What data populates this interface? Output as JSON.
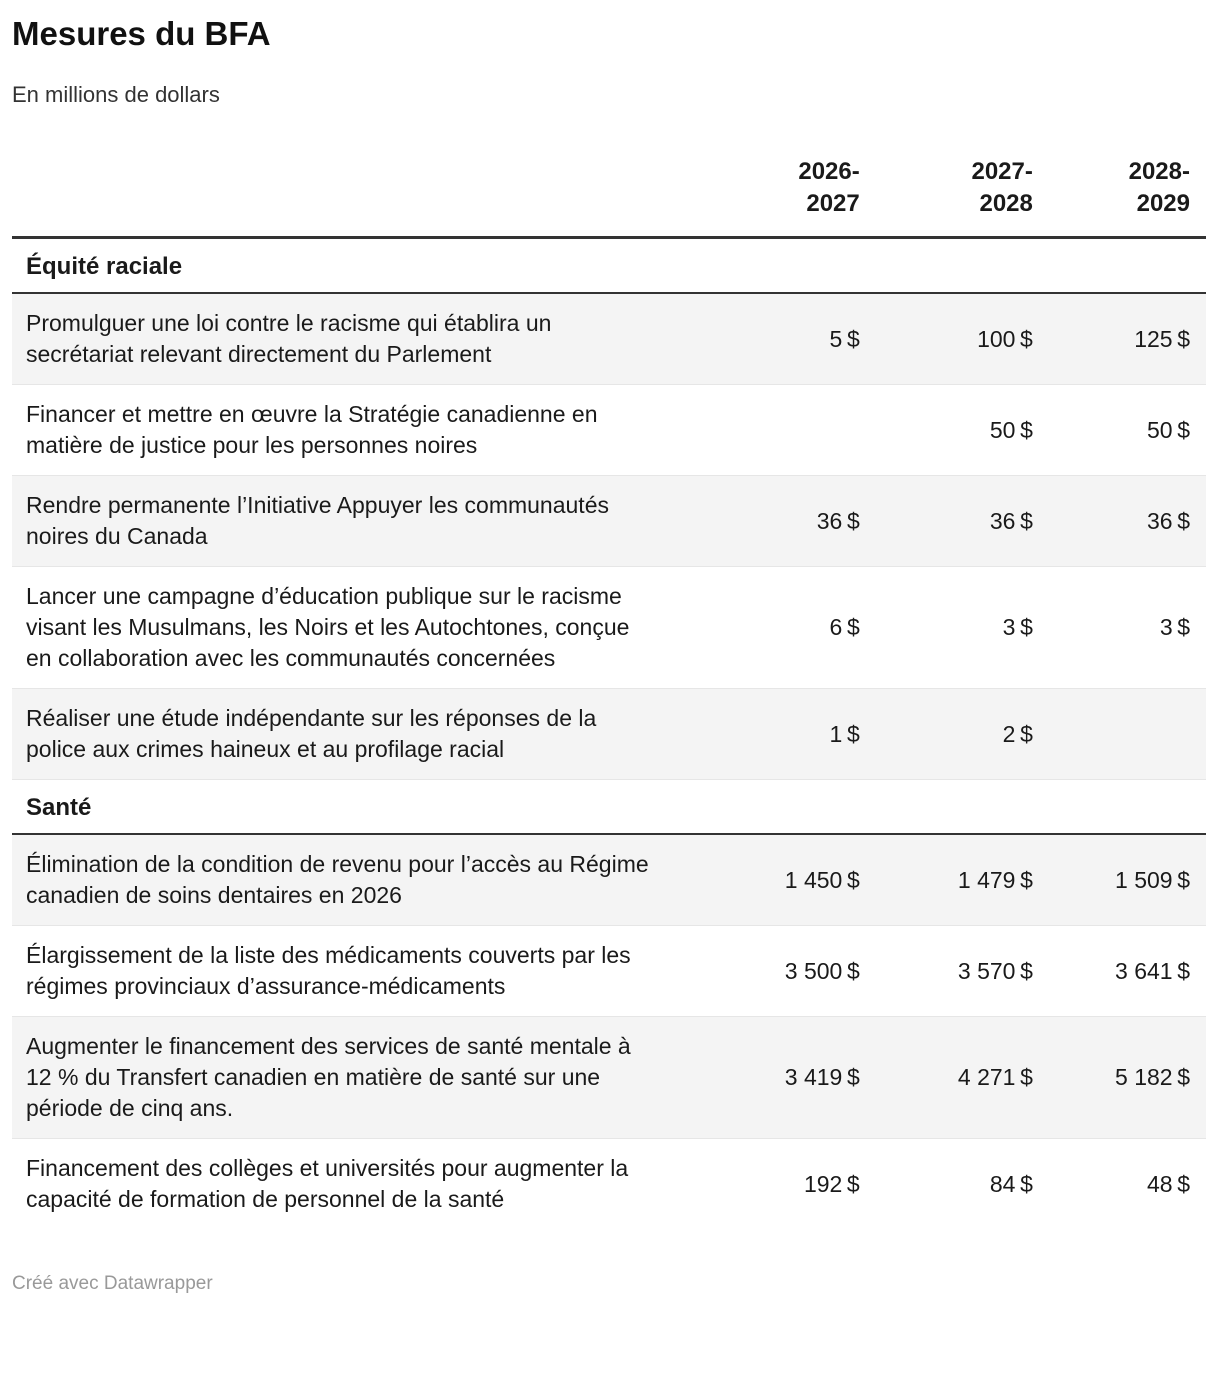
{
  "header": {
    "title": "Mesures du BFA",
    "subtitle": "En millions de dollars"
  },
  "table": {
    "columns": [
      "2026-2027",
      "2027-2028",
      "2028-2029"
    ],
    "sections": [
      {
        "title": "Équité raciale",
        "rows": [
          {
            "label": "Promulguer une loi contre le racisme qui établira un secrétariat relevant directement du Parlement",
            "values": [
              "5 $",
              "100 $",
              "125 $"
            ]
          },
          {
            "label": "Financer et mettre en œuvre la Stratégie canadienne en matière de justice pour les personnes noires",
            "values": [
              "",
              "50 $",
              "50 $"
            ]
          },
          {
            "label": "Rendre permanente l’Initiative Appuyer les communautés noires du Canada",
            "values": [
              "36 $",
              "36 $",
              "36 $"
            ]
          },
          {
            "label": "Lancer une campagne d’éducation publique sur le racisme visant les Musulmans, les Noirs et les Autochtones, conçue en collaboration avec les communautés concernées",
            "values": [
              "6 $",
              "3 $",
              "3 $"
            ]
          },
          {
            "label": "Réaliser une étude indépendante sur les réponses de la police aux crimes haineux et au profilage racial",
            "values": [
              "1 $",
              "2 $",
              ""
            ]
          }
        ]
      },
      {
        "title": "Santé",
        "rows": [
          {
            "label": "Élimination de la condition de revenu pour l’accès au Régime canadien de soins dentaires en 2026",
            "values": [
              "1 450 $",
              "1 479 $",
              "1 509 $"
            ]
          },
          {
            "label": "Élargissement de la liste des médicaments couverts par les régimes provinciaux d’assurance-médicaments",
            "values": [
              "3 500 $",
              "3 570 $",
              "3 641 $"
            ]
          },
          {
            "label": "Augmenter le financement des services de santé mentale à 12 % du Transfert canadien en matière de santé sur une période de cinq ans.",
            "values": [
              "3 419 $",
              "4 271 $",
              "5 182 $"
            ]
          },
          {
            "label": "Financement des collèges et universités pour augmenter la capacité de formation de personnel de la santé",
            "values": [
              "192 $",
              "84 $",
              "48 $"
            ]
          }
        ]
      }
    ]
  },
  "footer": {
    "credit": "Créé avec Datawrapper"
  },
  "colors": {
    "rule_dark": "#333333",
    "row_stripe": "#f4f4f4",
    "row_divider": "#e6e6e6",
    "text": "#1a1a1a",
    "muted_text": "#999999"
  },
  "chart_data": {
    "type": "table",
    "title": "Mesures du BFA",
    "subtitle": "En millions de dollars",
    "unit": "millions de dollars",
    "columns": [
      "Mesure",
      "2026-2027",
      "2027-2028",
      "2028-2029"
    ],
    "sections": [
      {
        "name": "Équité raciale",
        "rows": [
          {
            "label": "Promulguer une loi contre le racisme qui établira un secrétariat relevant directement du Parlement",
            "values": [
              5,
              100,
              125
            ]
          },
          {
            "label": "Financer et mettre en œuvre la Stratégie canadienne en matière de justice pour les personnes noires",
            "values": [
              null,
              50,
              50
            ]
          },
          {
            "label": "Rendre permanente l’Initiative Appuyer les communautés noires du Canada",
            "values": [
              36,
              36,
              36
            ]
          },
          {
            "label": "Lancer une campagne d’éducation publique sur le racisme visant les Musulmans, les Noirs et les Autochtones, conçue en collaboration avec les communautés concernées",
            "values": [
              6,
              3,
              3
            ]
          },
          {
            "label": "Réaliser une étude indépendante sur les réponses de la police aux crimes haineux et au profilage racial",
            "values": [
              1,
              2,
              null
            ]
          }
        ]
      },
      {
        "name": "Santé",
        "rows": [
          {
            "label": "Élimination de la condition de revenu pour l’accès au Régime canadien de soins dentaires en 2026",
            "values": [
              1450,
              1479,
              1509
            ]
          },
          {
            "label": "Élargissement de la liste des médicaments couverts par les régimes provinciaux d’assurance-médicaments",
            "values": [
              3500,
              3570,
              3641
            ]
          },
          {
            "label": "Augmenter le financement des services de santé mentale à 12 % du Transfert canadien en matière de santé sur une période de cinq ans.",
            "values": [
              3419,
              4271,
              5182
            ]
          },
          {
            "label": "Financement des collèges et universités pour augmenter la capacité de formation de personnel de la santé",
            "values": [
              192,
              84,
              48
            ]
          }
        ]
      }
    ],
    "layout": {
      "striped_rows": true,
      "value_alignment": "right",
      "grid": "horizontal-dividers"
    }
  }
}
